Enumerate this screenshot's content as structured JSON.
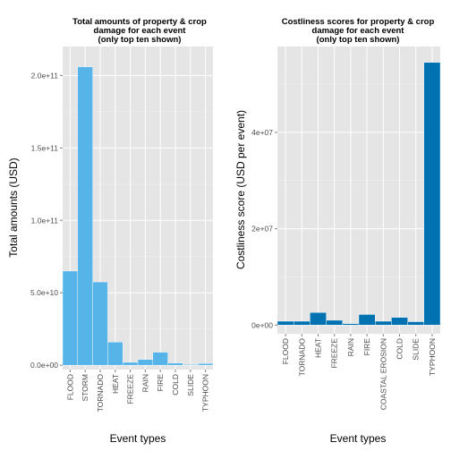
{
  "chart_data": [
    {
      "type": "bar",
      "title": [
        "Total amounts of property & crop",
        "damage for each event",
        "(only top ten shown)"
      ],
      "xlabel": "Event types",
      "ylabel": "Total amounts (USD)",
      "categories": [
        "FLOOD",
        "STORM",
        "TORNADO",
        "HEAT",
        "FREEZE",
        "RAIN",
        "FIRE",
        "COLD",
        "SLIDE",
        "TYPHOON"
      ],
      "values": [
        65000000000,
        206000000000,
        57500000000,
        16000000000,
        2000000000,
        4000000000,
        9000000000,
        1500000000,
        500000000,
        1200000000
      ],
      "ylim": [
        -3000000000,
        220000000000
      ],
      "yticks": [
        0,
        50000000000,
        100000000000,
        150000000000,
        200000000000
      ],
      "yticklabels": [
        "0.0e+00",
        "5.0e+10",
        "1.0e+11",
        "1.5e+11",
        "2.0e+11"
      ],
      "grid": true,
      "bar_color": "#56b4e9",
      "panel_background": "#e5e5e5"
    },
    {
      "type": "bar",
      "title": [
        "Costliness scores for property & crop",
        "damage for each event",
        "(only top ten shown)"
      ],
      "xlabel": "Event types",
      "ylabel": "Costliness score (USD per event)",
      "categories": [
        "FLOOD",
        "TORNADO",
        "HEAT",
        "FREEZE",
        "RAIN",
        "FIRE",
        "COASTAL EROSION",
        "COLD",
        "SLIDE",
        "TYPHOON"
      ],
      "values": [
        800000,
        800000,
        2600000,
        1000000,
        300000,
        2200000,
        800000,
        1600000,
        700000,
        54500000
      ],
      "ylim": [
        -1800000,
        57800000
      ],
      "yticks": [
        0,
        20000000,
        40000000
      ],
      "yticklabels": [
        "0e+00",
        "2e+07",
        "4e+07"
      ],
      "grid": true,
      "bar_color": "#0072b2",
      "panel_background": "#e5e5e5"
    }
  ]
}
